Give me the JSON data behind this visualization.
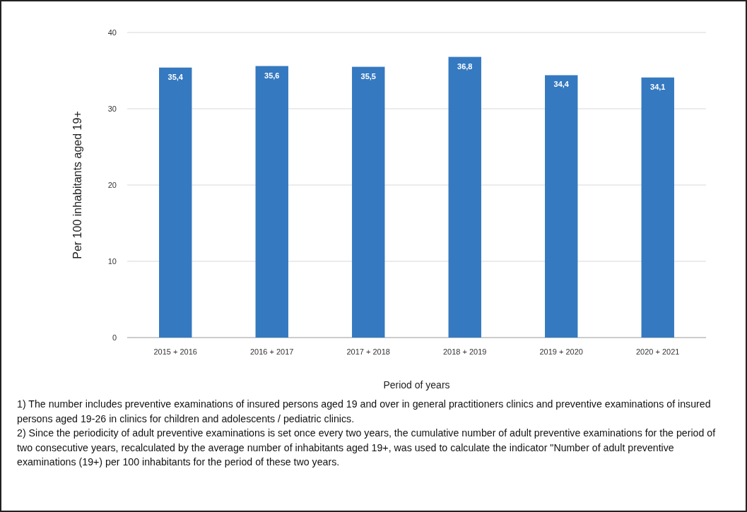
{
  "chart_data": {
    "type": "bar",
    "xlabel": "Period of years",
    "ylabel": "Per 100 inhabitants aged 19+",
    "categories": [
      "2015 + 2016",
      "2016 + 2017",
      "2017 + 2018",
      "2018 + 2019",
      "2019 + 2020",
      "2020 + 2021"
    ],
    "values": [
      35.4,
      35.6,
      35.5,
      36.8,
      34.4,
      34.1
    ],
    "value_labels": [
      "35,4",
      "35,6",
      "35,5",
      "36,8",
      "34,4",
      "34,1"
    ],
    "color": "#3579c0",
    "ylim": [
      0,
      40
    ],
    "yticks": [
      0,
      10,
      20,
      30,
      40
    ],
    "grid": "y",
    "annotations": [
      "1) The number includes preventive examinations of insured persons aged 19 and over in general practitioners clinics and preventive examinations of insured persons aged 19-26 in clinics for children and adolescents / pediatric clinics.",
      "2) Since the periodicity of adult preventive examinations is set once every two years, the cumulative number of adult preventive examinations for the period of two consecutive years, recalculated by the average number of inhabitants aged 19+, was used to calculate the indicator \"Number of adult preventive examinations (19+) per 100 inhabitants for the period of these two years."
    ]
  }
}
